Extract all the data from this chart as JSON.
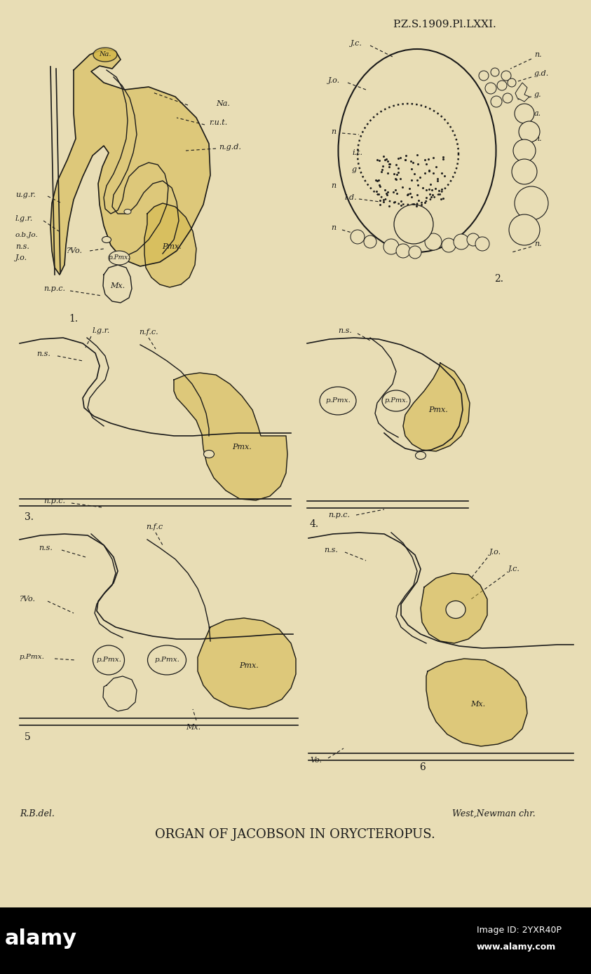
{
  "background_color": "#e8ddb5",
  "line_color": "#1a1a1a",
  "fill_color": "#d4b84a",
  "fill_alpha": 0.55,
  "header_text": "P.Z.S.1909.Pl.LXXI.",
  "footer_title": "ORGAN OF JACOBSON IN ORYCTEROPUS.",
  "footer_left": "R.B.del.",
  "footer_right": "West,Newman chr.",
  "alamy_text_left": "alamy",
  "alamy_text_right1": "Image ID: 2YXR40P",
  "alamy_text_right2": "www.alamy.com"
}
